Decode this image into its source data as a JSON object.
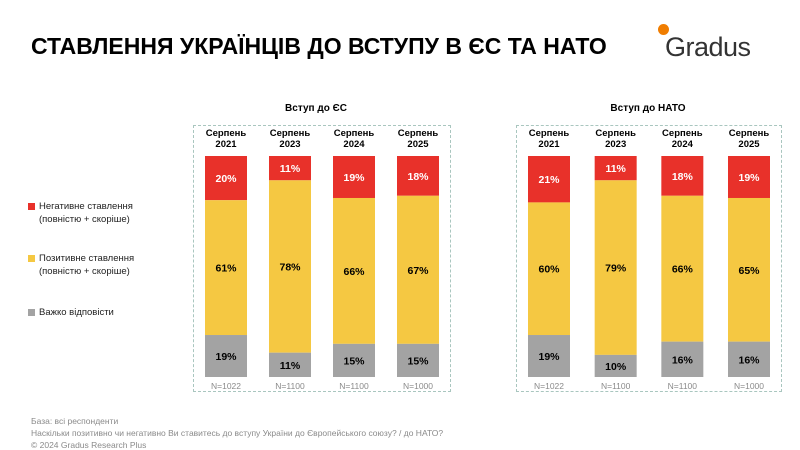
{
  "title": "СТАВЛЕННЯ УКРАЇНЦІВ ДО ВСТУПУ В ЄС ТА НАТО",
  "logo": {
    "text": "Gradus",
    "dot_color": "#f07d00"
  },
  "colors": {
    "negative": "#e8312a",
    "positive": "#f5c842",
    "hard": "#a3a3a3",
    "box_border": "#a9c6bf"
  },
  "legend": [
    {
      "key": "negative",
      "label": "Негативне ставлення\n(повністю + скоріше)"
    },
    {
      "key": "positive",
      "label": "Позитивне ставлення\n(повністю + скоріше)"
    },
    {
      "key": "hard",
      "label": "Важко відповісти"
    }
  ],
  "chart_data": [
    {
      "type": "bar",
      "stacked": true,
      "title": "Вступ до ЄС",
      "categories": [
        "Серпень 2021",
        "Серпень 2023",
        "Серпень 2024",
        "Серпень 2025"
      ],
      "sample_sizes": [
        "N=1022",
        "N=1100",
        "N=1100",
        "N=1000"
      ],
      "series": [
        {
          "name": "Негативне ставлення (повністю + скоріше)",
          "key": "negative",
          "values": [
            20,
            11,
            19,
            18
          ]
        },
        {
          "name": "Позитивне ставлення (повністю + скоріше)",
          "key": "positive",
          "values": [
            61,
            78,
            66,
            67
          ]
        },
        {
          "name": "Важко відповісти",
          "key": "hard",
          "values": [
            19,
            11,
            15,
            15
          ]
        }
      ]
    },
    {
      "type": "bar",
      "stacked": true,
      "title": "Вступ до НАТО",
      "categories": [
        "Серпень 2021",
        "Серпень 2023",
        "Серпень 2024",
        "Серпень 2025"
      ],
      "sample_sizes": [
        "N=1022",
        "N=1100",
        "N=1100",
        "N=1000"
      ],
      "series": [
        {
          "name": "Негативне ставлення (повністю + скоріше)",
          "key": "negative",
          "values": [
            21,
            11,
            18,
            19
          ]
        },
        {
          "name": "Позитивне ставлення (повністю + скоріше)",
          "key": "positive",
          "values": [
            60,
            79,
            66,
            65
          ]
        },
        {
          "name": "Важко відповісти",
          "key": "hard",
          "values": [
            19,
            10,
            16,
            16
          ]
        }
      ]
    }
  ],
  "footer": {
    "base": "База: всі респонденти",
    "question": "Наскільки позитивно чи негативно Ви ставитесь до вступу України до Європейського союзу? / до НАТО?",
    "copyright": "© 2024 Gradus Research Plus"
  }
}
